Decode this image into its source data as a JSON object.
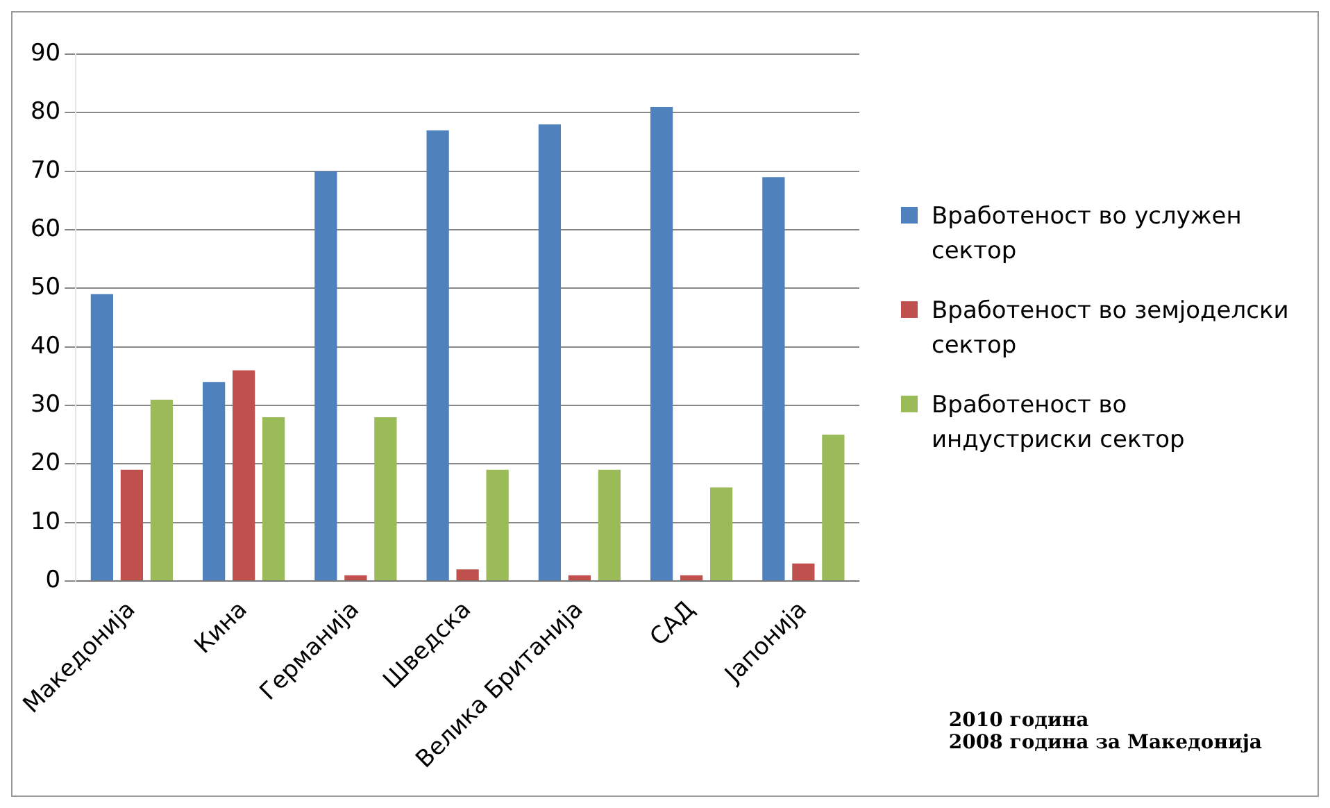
{
  "chart_data": {
    "type": "bar",
    "categories": [
      "Македонија",
      "Кина",
      "Германија",
      "Шведска",
      "Велика Британија",
      "САД",
      "Јапонија"
    ],
    "series": [
      {
        "name": "Вработеност во услужен сектор",
        "color": "#4f81bd",
        "values": [
          49,
          34,
          70,
          77,
          78,
          81,
          69
        ]
      },
      {
        "name": "Вработеност во земјоделски сектор",
        "color": "#c0504d",
        "values": [
          19,
          36,
          1,
          2,
          1,
          1,
          3
        ]
      },
      {
        "name": "Вработеност во индустриски сектор",
        "color": "#9bbb59",
        "values": [
          31,
          28,
          28,
          19,
          19,
          16,
          25
        ]
      }
    ],
    "ylim": [
      0,
      90
    ],
    "yticks": [
      0,
      10,
      20,
      30,
      40,
      50,
      60,
      70,
      80,
      90
    ],
    "grid": "y",
    "legend": "right",
    "annotations": [
      "2010 година",
      "2008 година за Македонија"
    ]
  }
}
